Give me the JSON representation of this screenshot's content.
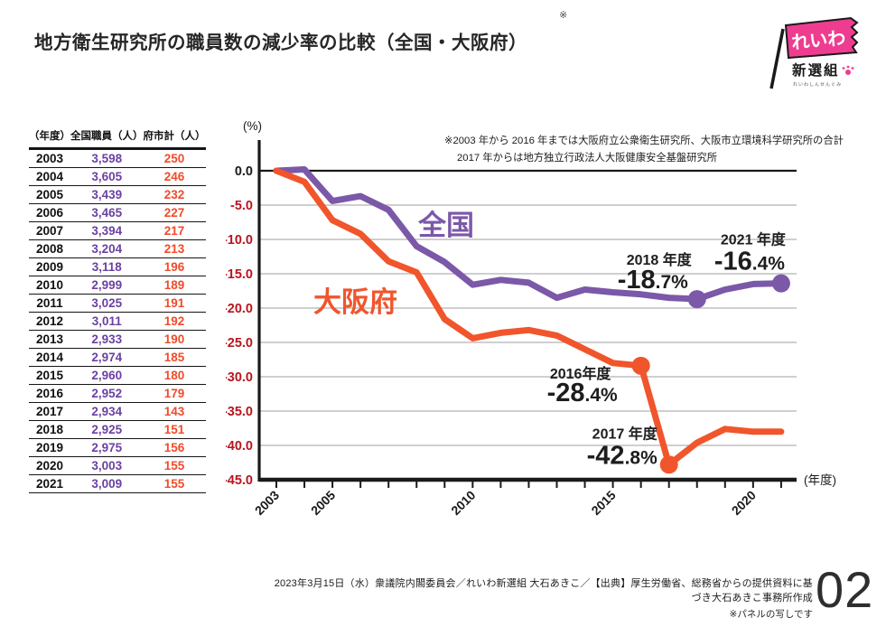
{
  "page": {
    "title": "地方衛生研究所の職員数の減少率の比較（全国・大阪府）",
    "title_note_mark": "※",
    "footer_line1": "2023年3月15日（水）衆議院内閣委員会／れいわ新選組 大石あきこ／【出典】厚生労働省、総務省からの提供資料に基づき大石あきこ事務所作成",
    "footer_line2": "※パネルの写しです",
    "page_number": "02"
  },
  "logo": {
    "flag_text": "れいわ",
    "sub_text": "新選組",
    "small_text": "れいわしんせんぐみ",
    "flag_color": "#ee3d90"
  },
  "table": {
    "headers": [
      "（年度）",
      "全国職員（人）",
      "府市計（人）"
    ],
    "rows": [
      [
        "2003",
        "3,598",
        "250"
      ],
      [
        "2004",
        "3,605",
        "246"
      ],
      [
        "2005",
        "3,439",
        "232"
      ],
      [
        "2006",
        "3,465",
        "227"
      ],
      [
        "2007",
        "3,394",
        "217"
      ],
      [
        "2008",
        "3,204",
        "213"
      ],
      [
        "2009",
        "3,118",
        "196"
      ],
      [
        "2010",
        "2,999",
        "189"
      ],
      [
        "2011",
        "3,025",
        "191"
      ],
      [
        "2012",
        "3,011",
        "192"
      ],
      [
        "2013",
        "2,933",
        "190"
      ],
      [
        "2014",
        "2,974",
        "185"
      ],
      [
        "2015",
        "2,960",
        "180"
      ],
      [
        "2016",
        "2,952",
        "179"
      ],
      [
        "2017",
        "2,934",
        "143"
      ],
      [
        "2018",
        "2,925",
        "151"
      ],
      [
        "2019",
        "2,975",
        "156"
      ],
      [
        "2020",
        "3,003",
        "155"
      ],
      [
        "2021",
        "3,009",
        "155"
      ]
    ]
  },
  "chart_data": {
    "type": "line",
    "title": "地方衛生研究所の職員数の減少率の比較（全国・大阪府）",
    "ylabel_unit": "(%)",
    "xlabel_unit": "(年度)",
    "note_line1": "※2003 年から 2016 年までは大阪府立公衆衛生研究所、大阪市立環境科学研究所の合計",
    "note_line2": "2017 年からは地方独立行政法人大阪健康安全基盤研究所",
    "x": [
      2003,
      2004,
      2005,
      2006,
      2007,
      2008,
      2009,
      2010,
      2011,
      2012,
      2013,
      2014,
      2015,
      2016,
      2017,
      2018,
      2019,
      2020,
      2021
    ],
    "x_tick_labels": [
      "2003",
      "2005",
      "2010",
      "2015",
      "2020"
    ],
    "ylim": [
      -45,
      0
    ],
    "y_ticks": [
      0,
      -5,
      -10,
      -15,
      -20,
      -25,
      -30,
      -35,
      -40,
      -45
    ],
    "y_tick_labels": [
      "0.0",
      "-5.0",
      "-10.0",
      "-15.0",
      "-20.0",
      "-25.0",
      "-30.0",
      "-35.0",
      "-40.0",
      "-45.0"
    ],
    "grid": true,
    "series": [
      {
        "name": "全国",
        "color": "#7b58a8",
        "values": [
          0.0,
          0.2,
          -4.4,
          -3.7,
          -5.7,
          -11.0,
          -13.3,
          -16.6,
          -15.9,
          -16.3,
          -18.5,
          -17.3,
          -17.7,
          -18.0,
          -18.5,
          -18.7,
          -17.3,
          -16.5,
          -16.4
        ],
        "marker_years": [
          2018,
          2021
        ]
      },
      {
        "name": "大阪府",
        "color": "#f1552c",
        "values": [
          0.0,
          -1.6,
          -7.2,
          -9.2,
          -13.2,
          -14.8,
          -21.6,
          -24.4,
          -23.6,
          -23.2,
          -24.0,
          -26.0,
          -28.0,
          -28.4,
          -42.8,
          -39.6,
          -37.6,
          -38.0,
          -38.0
        ],
        "marker_years": [
          2016,
          2017
        ]
      }
    ],
    "annotations": [
      {
        "series": 1,
        "year": 2016,
        "year_label": "2016年度",
        "value": "-28.4%"
      },
      {
        "series": 1,
        "year": 2017,
        "year_label": "2017 年度",
        "value": "-42.8%"
      },
      {
        "series": 0,
        "year": 2018,
        "year_label": "2018 年度",
        "value": "-18.7%"
      },
      {
        "series": 0,
        "year": 2021,
        "year_label": "2021 年度",
        "value": "-16.4%"
      }
    ]
  }
}
